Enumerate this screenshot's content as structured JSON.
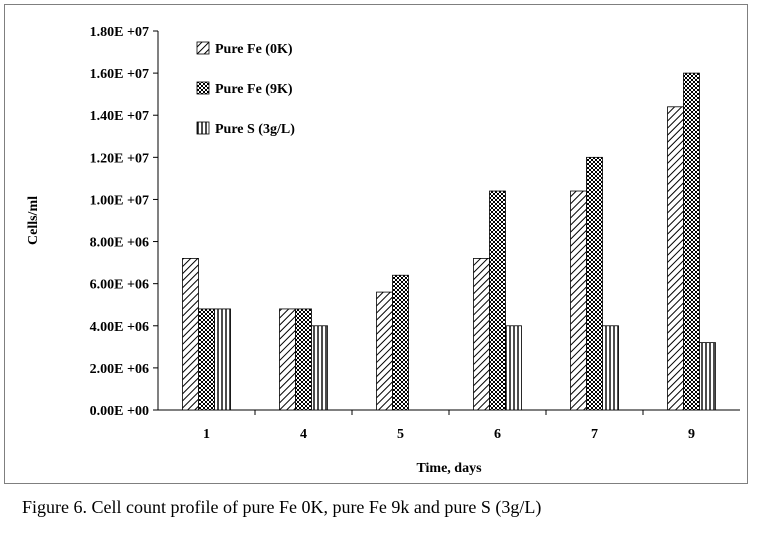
{
  "chart_data": {
    "type": "bar",
    "categories": [
      "1",
      "4",
      "5",
      "6",
      "7",
      "9"
    ],
    "series": [
      {
        "name": "Pure Fe (0K)",
        "pattern": "diagonal",
        "values": [
          7200000,
          4800000,
          5600000,
          7200000,
          10400000,
          14400000
        ]
      },
      {
        "name": "Pure Fe (9K)",
        "pattern": "checker",
        "values": [
          4800000,
          4800000,
          6400000,
          10400000,
          12000000,
          16000000
        ]
      },
      {
        "name": "Pure S (3g/L)",
        "pattern": "vertical",
        "values": [
          4800000,
          4000000,
          null,
          4000000,
          4000000,
          3200000
        ]
      }
    ],
    "xlabel": "Time, days",
    "ylabel": "Cells/ml",
    "ylim": [
      0,
      18000000
    ],
    "y_ticks": [
      "0.00E +00",
      "2.00E +06",
      "4.00E +06",
      "6.00E +06",
      "8.00E +06",
      "1.00E +07",
      "1.20E +07",
      "1.40E +07",
      "1.60E +07",
      "1.80E +07"
    ],
    "legend_position": "top-left",
    "grid": false
  },
  "caption": "Figure 6. Cell count profile of pure Fe 0K, pure Fe 9k and pure S (3g/L)",
  "colors": {
    "ink": "#000000",
    "frame": "#7f7f7f",
    "background": "#ffffff"
  }
}
